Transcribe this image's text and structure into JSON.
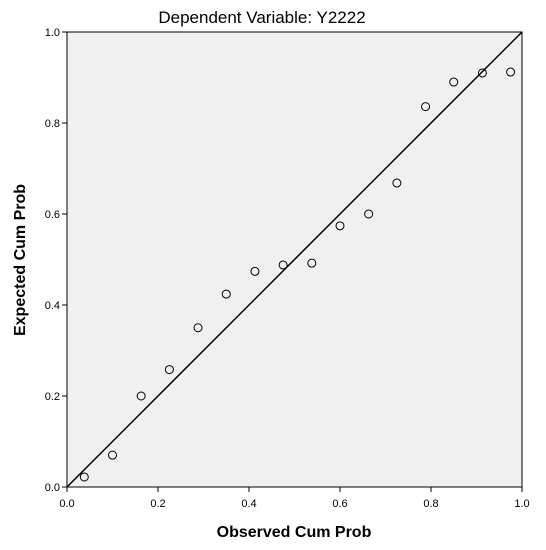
{
  "chart_data": {
    "type": "scatter",
    "title": "Dependent Variable: Y2222",
    "xlabel": "Observed Cum Prob",
    "ylabel": "Expected Cum Prob",
    "xlim": [
      0,
      1
    ],
    "ylim": [
      0,
      1
    ],
    "xticks": [
      "0.0",
      "0.2",
      "0.4",
      "0.6",
      "0.8",
      "1.0"
    ],
    "yticks": [
      "0.0",
      "0.2",
      "0.4",
      "0.6",
      "0.8",
      "1.0"
    ],
    "grid": false,
    "legend": "none",
    "reference_line": {
      "from": [
        0,
        0
      ],
      "to": [
        1,
        1
      ]
    },
    "colors": {
      "plot_bg": "#f0f0f0",
      "marker": "#000000",
      "line": "#000000"
    },
    "points": [
      {
        "x": 0.038,
        "y": 0.022
      },
      {
        "x": 0.1,
        "y": 0.07
      },
      {
        "x": 0.163,
        "y": 0.2
      },
      {
        "x": 0.225,
        "y": 0.258
      },
      {
        "x": 0.288,
        "y": 0.35
      },
      {
        "x": 0.35,
        "y": 0.424
      },
      {
        "x": 0.413,
        "y": 0.474
      },
      {
        "x": 0.475,
        "y": 0.488
      },
      {
        "x": 0.538,
        "y": 0.492
      },
      {
        "x": 0.6,
        "y": 0.574
      },
      {
        "x": 0.663,
        "y": 0.6
      },
      {
        "x": 0.725,
        "y": 0.668
      },
      {
        "x": 0.788,
        "y": 0.836
      },
      {
        "x": 0.85,
        "y": 0.89
      },
      {
        "x": 0.913,
        "y": 0.91
      },
      {
        "x": 0.975,
        "y": 0.912
      }
    ]
  }
}
